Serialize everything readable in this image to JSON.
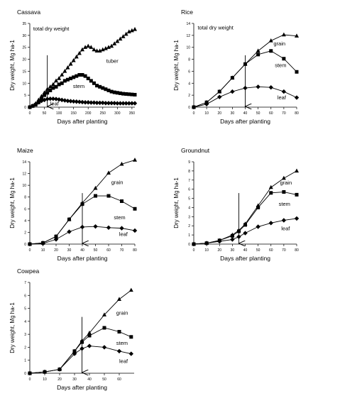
{
  "chart_data": [
    {
      "type": "line",
      "title": "Cassava",
      "xlabel": "Days after planting",
      "ylabel": "Dry weight, Mg ha-1",
      "xlim": [
        0,
        360
      ],
      "ylim": [
        0,
        35
      ],
      "xticks": [
        0,
        50,
        100,
        150,
        200,
        250,
        300,
        350
      ],
      "yticks": [
        0,
        5,
        10,
        15,
        20,
        25,
        30,
        35
      ],
      "xticklabels": [
        "0",
        "50",
        "100",
        "150",
        "200",
        "250",
        "300",
        "350"
      ],
      "yticklabels": [
        "0",
        "5",
        "10",
        "15",
        "20",
        "25",
        "30",
        "35"
      ],
      "arrow_x": 60,
      "series": [
        {
          "name": "total dry weight",
          "marker": "triangle",
          "labelx": 12,
          "labely": 32,
          "x": [
            0,
            10,
            20,
            30,
            40,
            50,
            60,
            70,
            80,
            90,
            100,
            110,
            120,
            130,
            140,
            150,
            160,
            170,
            180,
            190,
            200,
            210,
            220,
            230,
            240,
            250,
            260,
            270,
            280,
            290,
            300,
            310,
            320,
            330,
            340,
            350,
            360
          ],
          "y": [
            0,
            0.5,
            1.5,
            3,
            4.5,
            6,
            7.5,
            8.5,
            9.5,
            11,
            12,
            13.5,
            15,
            16.5,
            18,
            19.5,
            21,
            22.5,
            24,
            25,
            25.5,
            25,
            24,
            23.5,
            23.5,
            24,
            24.5,
            25,
            25.5,
            26.5,
            27.5,
            28.5,
            29.5,
            30.5,
            31.5,
            32,
            32.5
          ]
        },
        {
          "name": "tuber",
          "marker": "none",
          "labelx": 262,
          "labely": 18.5,
          "x": [],
          "y": []
        },
        {
          "name": "stem",
          "marker": "square",
          "labelx": 148,
          "labely": 8,
          "x": [
            0,
            10,
            20,
            30,
            40,
            50,
            60,
            70,
            80,
            90,
            100,
            110,
            120,
            130,
            140,
            150,
            160,
            170,
            180,
            190,
            200,
            210,
            220,
            230,
            240,
            250,
            260,
            270,
            280,
            290,
            300,
            310,
            320,
            330,
            340,
            350,
            360
          ],
          "y": [
            0,
            0.5,
            1,
            2,
            3.5,
            5,
            6,
            7,
            8,
            8.5,
            9.5,
            10,
            11,
            11.5,
            12,
            12.5,
            13,
            13.5,
            13.5,
            13,
            12,
            11,
            10,
            9,
            8.5,
            8,
            7.5,
            7,
            6.5,
            6.2,
            6,
            5.8,
            5.6,
            5.5,
            5.4,
            5.3,
            5.2
          ]
        },
        {
          "name": "leaf",
          "marker": "diamond",
          "labelx": 70,
          "labely": 0.8,
          "x": [
            0,
            10,
            20,
            30,
            40,
            50,
            60,
            70,
            80,
            90,
            100,
            110,
            120,
            130,
            140,
            150,
            160,
            170,
            180,
            190,
            200,
            210,
            220,
            230,
            240,
            250,
            260,
            270,
            280,
            290,
            300,
            310,
            320,
            330,
            340,
            350,
            360
          ],
          "y": [
            0,
            0.5,
            1.2,
            2,
            2.6,
            3,
            3.4,
            3.5,
            3.5,
            3.4,
            3.2,
            3,
            2.8,
            2.6,
            2.5,
            2.4,
            2.3,
            2.2,
            2.1,
            2,
            2,
            1.9,
            1.9,
            1.8,
            1.8,
            1.8,
            1.7,
            1.7,
            1.7,
            1.7,
            1.6,
            1.6,
            1.6,
            1.6,
            1.6,
            1.6,
            1.6
          ]
        }
      ]
    },
    {
      "type": "line",
      "title": "Rice",
      "xlabel": "Days after planting",
      "ylabel": "Dry weight, Mg ha-1",
      "xlim": [
        0,
        80
      ],
      "ylim": [
        0,
        14
      ],
      "xticks": [
        0,
        10,
        20,
        30,
        40,
        50,
        60,
        70,
        80
      ],
      "yticks": [
        0,
        2,
        4,
        6,
        8,
        10,
        12,
        14
      ],
      "xticklabels": [
        "0",
        "10",
        "20",
        "30",
        "40",
        "50",
        "60",
        "70",
        "80"
      ],
      "yticklabels": [
        "0",
        "2",
        "4",
        "6",
        "8",
        "10",
        "12",
        "14"
      ],
      "arrow_x": 40,
      "series": [
        {
          "name": "total dry weight",
          "marker": "none",
          "labelx": 3,
          "labely": 13,
          "x": [],
          "y": []
        },
        {
          "name": "grain",
          "marker": "triangle",
          "labelx": 62,
          "labely": 10.3,
          "x": [
            0,
            10,
            20,
            30,
            40,
            50,
            60,
            70,
            80
          ],
          "y": [
            0,
            0.8,
            2.6,
            4.9,
            7.2,
            9.4,
            11.1,
            12.1,
            11.9
          ]
        },
        {
          "name": "stem",
          "marker": "square",
          "labelx": 63,
          "labely": 6.7,
          "x": [
            0,
            10,
            20,
            30,
            40,
            50,
            60,
            70,
            80
          ],
          "y": [
            0,
            0.8,
            2.6,
            4.9,
            7.2,
            8.8,
            9.4,
            8.1,
            5.9
          ]
        },
        {
          "name": "leaf",
          "marker": "diamond",
          "labelx": 65,
          "labely": 1.3,
          "x": [
            0,
            10,
            20,
            30,
            40,
            50,
            60,
            70,
            80
          ],
          "y": [
            0,
            0.5,
            1.7,
            2.6,
            3.2,
            3.4,
            3.3,
            2.6,
            1.6
          ]
        }
      ]
    },
    {
      "type": "line",
      "title": "Maize",
      "xlabel": "Days after planting",
      "ylabel": "Dry weight, Mg ha-1",
      "xlim": [
        0,
        80
      ],
      "ylim": [
        0,
        14
      ],
      "xticks": [
        0,
        10,
        20,
        30,
        40,
        50,
        60,
        70,
        80
      ],
      "yticks": [
        0,
        2,
        4,
        6,
        8,
        10,
        12,
        14
      ],
      "xticklabels": [
        "0",
        "10",
        "20",
        "30",
        "40",
        "50",
        "60",
        "70",
        "80"
      ],
      "yticklabels": [
        "0",
        "2",
        "4",
        "6",
        "8",
        "10",
        "12",
        "14"
      ],
      "arrow_x": 40,
      "series": [
        {
          "name": "grain",
          "marker": "triangle",
          "labelx": 62,
          "labely": 10.2,
          "x": [
            0,
            10,
            20,
            30,
            40,
            50,
            60,
            70,
            80
          ],
          "y": [
            0,
            0.2,
            1.3,
            4.2,
            7.0,
            9.5,
            12.1,
            13.6,
            14.3
          ]
        },
        {
          "name": "stem",
          "marker": "square",
          "labelx": 64,
          "labely": 4.2,
          "x": [
            0,
            10,
            20,
            30,
            40,
            50,
            60,
            70,
            80
          ],
          "y": [
            0,
            0.2,
            1.3,
            4.2,
            6.8,
            8.2,
            8.2,
            7.3,
            6.0
          ]
        },
        {
          "name": "leaf",
          "marker": "diamond",
          "labelx": 68,
          "labely": 1.4,
          "x": [
            0,
            10,
            20,
            30,
            40,
            50,
            60,
            70,
            80
          ],
          "y": [
            0,
            0.1,
            0.8,
            2.1,
            2.9,
            3.0,
            2.8,
            2.7,
            2.3
          ]
        }
      ]
    },
    {
      "type": "line",
      "title": "Groundnut",
      "xlabel": "Days after planting",
      "ylabel": "Dry weight, Mg ha-1",
      "xlim": [
        0,
        80
      ],
      "ylim": [
        0,
        9
      ],
      "xticks": [
        0,
        10,
        20,
        30,
        40,
        50,
        60,
        70,
        80
      ],
      "yticks": [
        0,
        1,
        2,
        3,
        4,
        5,
        6,
        7,
        8,
        9
      ],
      "xticklabels": [
        "0",
        "10",
        "20",
        "30",
        "40",
        "50",
        "60",
        "70",
        "80"
      ],
      "yticklabels": [
        "0",
        "1",
        "2",
        "3",
        "4",
        "5",
        "6",
        "7",
        "8",
        "9"
      ],
      "arrow_x": 35,
      "series": [
        {
          "name": "grain",
          "marker": "triangle",
          "labelx": 67,
          "labely": 6.5,
          "x": [
            0,
            10,
            20,
            30,
            35,
            40,
            50,
            60,
            70,
            80
          ],
          "y": [
            0,
            0.1,
            0.4,
            1.0,
            1.5,
            2.2,
            4.2,
            6.2,
            7.2,
            8.0
          ]
        },
        {
          "name": "stem",
          "marker": "square",
          "labelx": 66,
          "labely": 4.2,
          "x": [
            0,
            10,
            20,
            30,
            35,
            40,
            50,
            60,
            70,
            80
          ],
          "y": [
            0,
            0.1,
            0.4,
            0.9,
            1.4,
            2.1,
            4.0,
            5.6,
            5.7,
            5.4
          ]
        },
        {
          "name": "leaf",
          "marker": "diamond",
          "labelx": 68,
          "labely": 1.5,
          "x": [
            0,
            10,
            20,
            30,
            35,
            40,
            50,
            60,
            70,
            80
          ],
          "y": [
            0,
            0.1,
            0.3,
            0.5,
            0.8,
            1.2,
            1.9,
            2.3,
            2.6,
            2.8
          ]
        }
      ]
    },
    {
      "type": "line",
      "title": "Cowpea",
      "xlabel": "Days after planting",
      "ylabel": "Dry weight, Mg ha-1",
      "xlim": [
        0,
        70
      ],
      "ylim": [
        0,
        7
      ],
      "xticks": [
        0,
        10,
        20,
        30,
        40,
        50,
        60
      ],
      "yticks": [
        0,
        1,
        2,
        3,
        4,
        5,
        6,
        7
      ],
      "xticklabels": [
        "0",
        "10",
        "20",
        "30",
        "40",
        "50",
        "60"
      ],
      "yticklabels": [
        "0",
        "1",
        "2",
        "3",
        "4",
        "5",
        "6",
        "7"
      ],
      "arrow_x": 35,
      "series": [
        {
          "name": "grain",
          "marker": "triangle",
          "labelx": 58,
          "labely": 4.5,
          "x": [
            0,
            10,
            20,
            30,
            35,
            40,
            50,
            60,
            68
          ],
          "y": [
            0,
            0.1,
            0.3,
            1.7,
            2.5,
            3.1,
            4.5,
            5.7,
            6.4
          ]
        },
        {
          "name": "stem",
          "marker": "square",
          "labelx": 58,
          "labely": 2.2,
          "x": [
            0,
            10,
            20,
            30,
            35,
            40,
            50,
            60,
            68
          ],
          "y": [
            0,
            0.1,
            0.3,
            1.7,
            2.4,
            2.9,
            3.5,
            3.2,
            2.8
          ]
        },
        {
          "name": "leaf",
          "marker": "diamond",
          "labelx": 60,
          "labely": 0.8,
          "x": [
            0,
            10,
            20,
            30,
            35,
            40,
            50,
            60,
            68
          ],
          "y": [
            0,
            0.1,
            0.3,
            1.5,
            1.9,
            2.1,
            2.0,
            1.7,
            1.5
          ]
        }
      ]
    }
  ]
}
